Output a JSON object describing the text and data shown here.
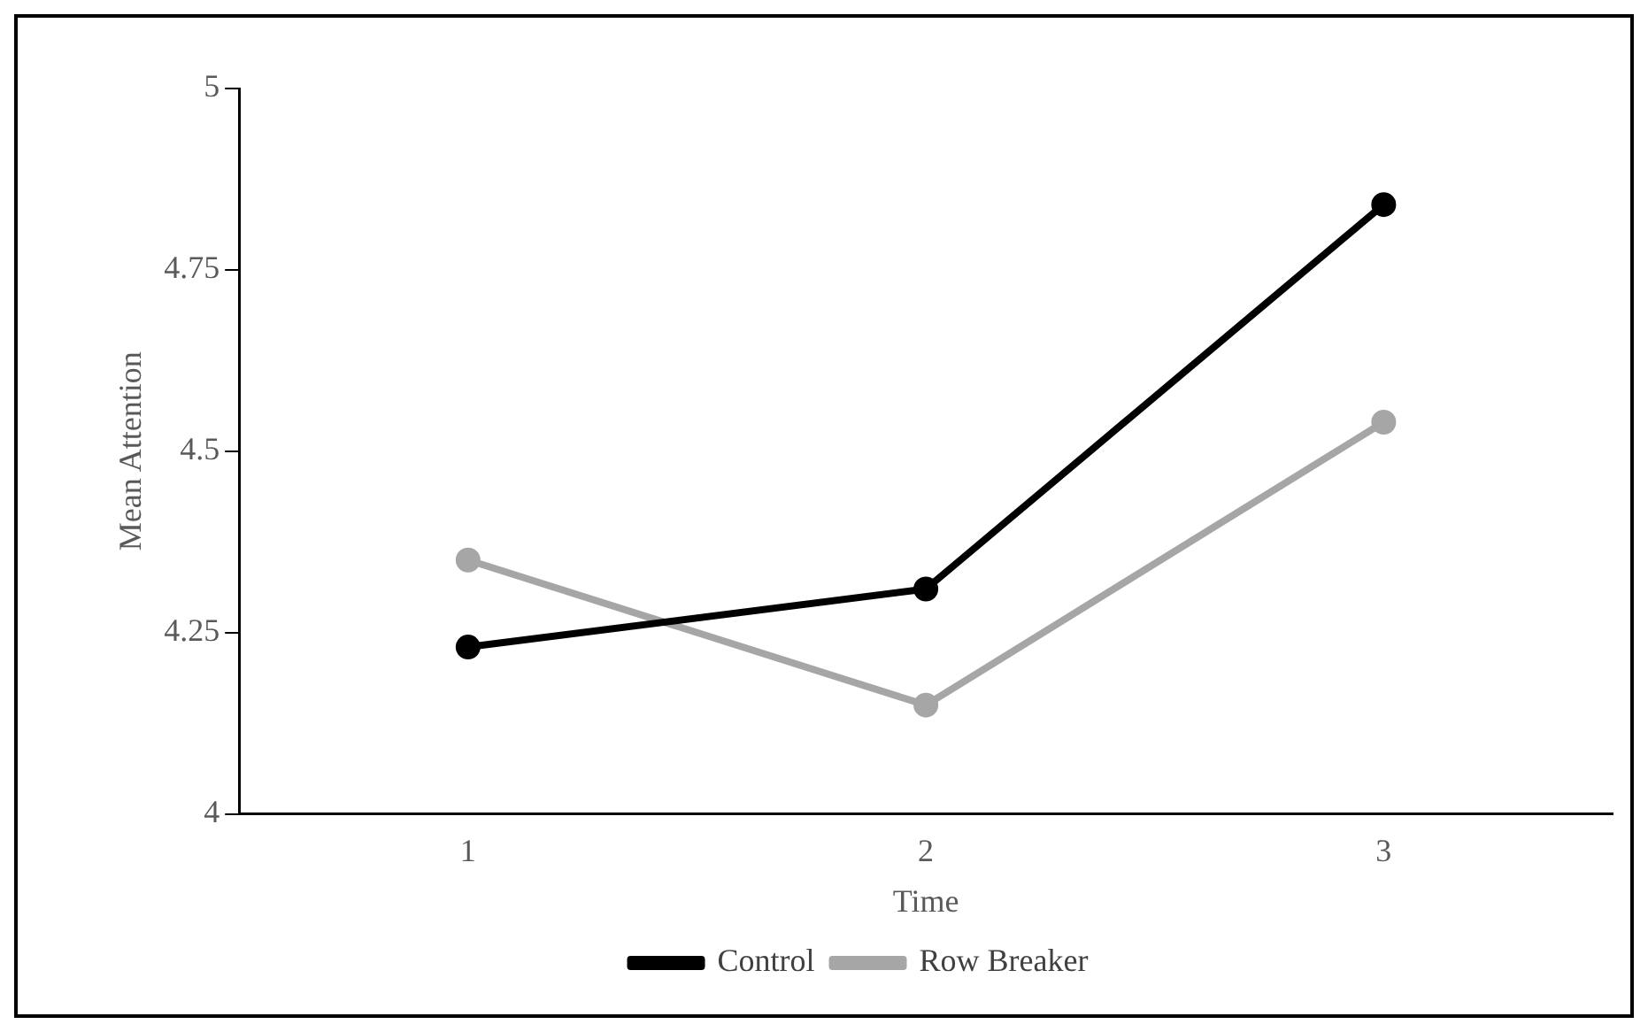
{
  "chart_data": {
    "type": "line",
    "xlabel": "Time",
    "ylabel": "Mean Attention",
    "categories": [
      "1",
      "2",
      "3"
    ],
    "series": [
      {
        "name": "Control",
        "color": "#000000",
        "values": [
          4.23,
          4.31,
          4.84
        ]
      },
      {
        "name": "Row Breaker",
        "color": "#a6a6a6",
        "values": [
          4.35,
          4.15,
          4.54
        ]
      }
    ],
    "ylim": [
      4,
      5
    ],
    "yticks": [
      4,
      4.25,
      4.5,
      4.75,
      5
    ],
    "grid": false,
    "legend": "bottom",
    "marker": "circle",
    "line_style": "solid"
  }
}
